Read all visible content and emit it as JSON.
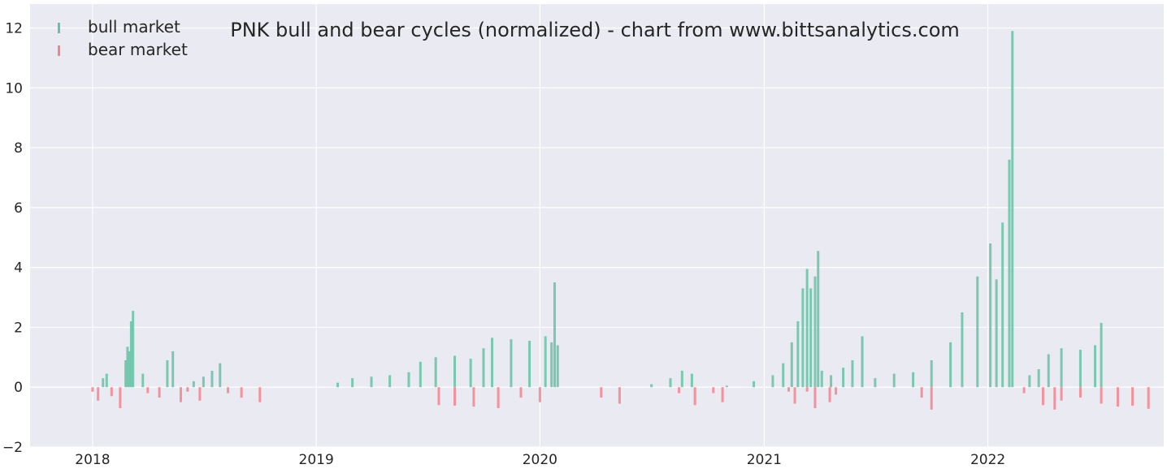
{
  "chart_data": {
    "type": "bar",
    "title": "PNK bull and bear cycles (normalized)  - chart from www.bittsanalytics.com",
    "xlabel": "",
    "ylabel": "",
    "xlim": [
      "2017-09-21",
      "2022-10-15"
    ],
    "ylim": [
      -2,
      12.8
    ],
    "x_ticks": [
      "2018",
      "2019",
      "2020",
      "2021",
      "2022"
    ],
    "y_ticks": [
      "−2",
      "0",
      "2",
      "4",
      "6",
      "8",
      "10",
      "12"
    ],
    "grid": true,
    "legend": {
      "placement": "top-left",
      "entries": [
        {
          "name": "bull market",
          "color": "#66c2a5"
        },
        {
          "name": "bear market",
          "color": "#f4828e"
        }
      ]
    },
    "colors": {
      "bull": "#66c2a5",
      "bear": "#f4828e",
      "background": "#eaeaf2",
      "grid": "#ffffff"
    },
    "series": [
      {
        "name": "bull market",
        "points": [
          [
            "2018-01-18",
            0.3
          ],
          [
            "2018-01-24",
            0.45
          ],
          [
            "2018-02-24",
            0.9
          ],
          [
            "2018-02-27",
            1.35
          ],
          [
            "2018-03-02",
            1.2
          ],
          [
            "2018-03-05",
            2.2
          ],
          [
            "2018-03-08",
            2.55
          ],
          [
            "2018-03-24",
            0.45
          ],
          [
            "2018-05-03",
            0.9
          ],
          [
            "2018-05-12",
            1.2
          ],
          [
            "2018-06-15",
            0.2
          ],
          [
            "2018-07-01",
            0.35
          ],
          [
            "2018-07-15",
            0.55
          ],
          [
            "2018-07-28",
            0.8
          ],
          [
            "2019-02-05",
            0.15
          ],
          [
            "2019-03-01",
            0.3
          ],
          [
            "2019-04-01",
            0.35
          ],
          [
            "2019-05-01",
            0.4
          ],
          [
            "2019-06-01",
            0.5
          ],
          [
            "2019-06-20",
            0.85
          ],
          [
            "2019-07-15",
            1.0
          ],
          [
            "2019-08-15",
            1.05
          ],
          [
            "2019-09-10",
            0.95
          ],
          [
            "2019-10-01",
            1.3
          ],
          [
            "2019-10-15",
            1.65
          ],
          [
            "2019-11-15",
            1.6
          ],
          [
            "2019-12-15",
            1.55
          ],
          [
            "2020-01-10",
            1.7
          ],
          [
            "2020-01-20",
            1.5
          ],
          [
            "2020-01-25",
            3.5
          ],
          [
            "2020-01-30",
            1.4
          ],
          [
            "2020-07-01",
            0.1
          ],
          [
            "2020-08-01",
            0.3
          ],
          [
            "2020-08-20",
            0.55
          ],
          [
            "2020-09-05",
            0.45
          ],
          [
            "2020-11-01",
            0.05
          ],
          [
            "2020-12-15",
            0.2
          ],
          [
            "2021-01-15",
            0.4
          ],
          [
            "2021-02-01",
            0.8
          ],
          [
            "2021-02-15",
            1.5
          ],
          [
            "2021-02-25",
            2.2
          ],
          [
            "2021-03-05",
            3.3
          ],
          [
            "2021-03-12",
            3.95
          ],
          [
            "2021-03-18",
            3.3
          ],
          [
            "2021-03-25",
            3.7
          ],
          [
            "2021-03-30",
            4.55
          ],
          [
            "2021-04-05",
            0.55
          ],
          [
            "2021-04-20",
            0.4
          ],
          [
            "2021-05-10",
            0.65
          ],
          [
            "2021-05-25",
            0.9
          ],
          [
            "2021-06-10",
            1.7
          ],
          [
            "2021-07-01",
            0.3
          ],
          [
            "2021-08-01",
            0.45
          ],
          [
            "2021-09-01",
            0.5
          ],
          [
            "2021-10-01",
            0.9
          ],
          [
            "2021-11-01",
            1.5
          ],
          [
            "2021-11-20",
            2.5
          ],
          [
            "2021-12-15",
            3.7
          ],
          [
            "2022-01-05",
            4.8
          ],
          [
            "2022-01-15",
            3.6
          ],
          [
            "2022-01-25",
            5.5
          ],
          [
            "2022-02-05",
            7.6
          ],
          [
            "2022-02-10",
            11.9
          ],
          [
            "2022-03-10",
            0.4
          ],
          [
            "2022-03-25",
            0.6
          ],
          [
            "2022-04-10",
            1.1
          ],
          [
            "2022-05-01",
            1.3
          ],
          [
            "2022-06-01",
            1.25
          ],
          [
            "2022-06-25",
            1.4
          ],
          [
            "2022-07-05",
            2.15
          ]
        ]
      },
      {
        "name": "bear market",
        "points": [
          [
            "2018-01-01",
            -0.15
          ],
          [
            "2018-01-10",
            -0.45
          ],
          [
            "2018-02-01",
            -0.3
          ],
          [
            "2018-02-15",
            -0.7
          ],
          [
            "2018-04-01",
            -0.2
          ],
          [
            "2018-04-20",
            -0.35
          ],
          [
            "2018-05-25",
            -0.5
          ],
          [
            "2018-06-05",
            -0.15
          ],
          [
            "2018-06-25",
            -0.45
          ],
          [
            "2018-08-10",
            -0.2
          ],
          [
            "2018-09-01",
            -0.35
          ],
          [
            "2018-10-01",
            -0.5
          ],
          [
            "2019-07-20",
            -0.6
          ],
          [
            "2019-08-15",
            -0.62
          ],
          [
            "2019-09-15",
            -0.65
          ],
          [
            "2019-10-25",
            -0.7
          ],
          [
            "2019-12-01",
            -0.35
          ],
          [
            "2020-01-01",
            -0.5
          ],
          [
            "2020-04-10",
            -0.35
          ],
          [
            "2020-05-10",
            -0.55
          ],
          [
            "2020-08-15",
            -0.2
          ],
          [
            "2020-09-10",
            -0.6
          ],
          [
            "2020-10-10",
            -0.2
          ],
          [
            "2020-10-25",
            -0.5
          ],
          [
            "2021-02-10",
            -0.15
          ],
          [
            "2021-02-20",
            -0.55
          ],
          [
            "2021-03-12",
            -0.15
          ],
          [
            "2021-03-25",
            -0.7
          ],
          [
            "2021-04-18",
            -0.5
          ],
          [
            "2021-04-28",
            -0.25
          ],
          [
            "2021-09-15",
            -0.35
          ],
          [
            "2021-10-01",
            -0.75
          ],
          [
            "2022-03-01",
            -0.2
          ],
          [
            "2022-04-01",
            -0.6
          ],
          [
            "2022-04-20",
            -0.75
          ],
          [
            "2022-05-01",
            -0.45
          ],
          [
            "2022-06-01",
            -0.35
          ],
          [
            "2022-07-05",
            -0.55
          ],
          [
            "2022-08-01",
            -0.65
          ],
          [
            "2022-08-25",
            -0.62
          ],
          [
            "2022-09-20",
            -0.72
          ]
        ]
      }
    ]
  }
}
